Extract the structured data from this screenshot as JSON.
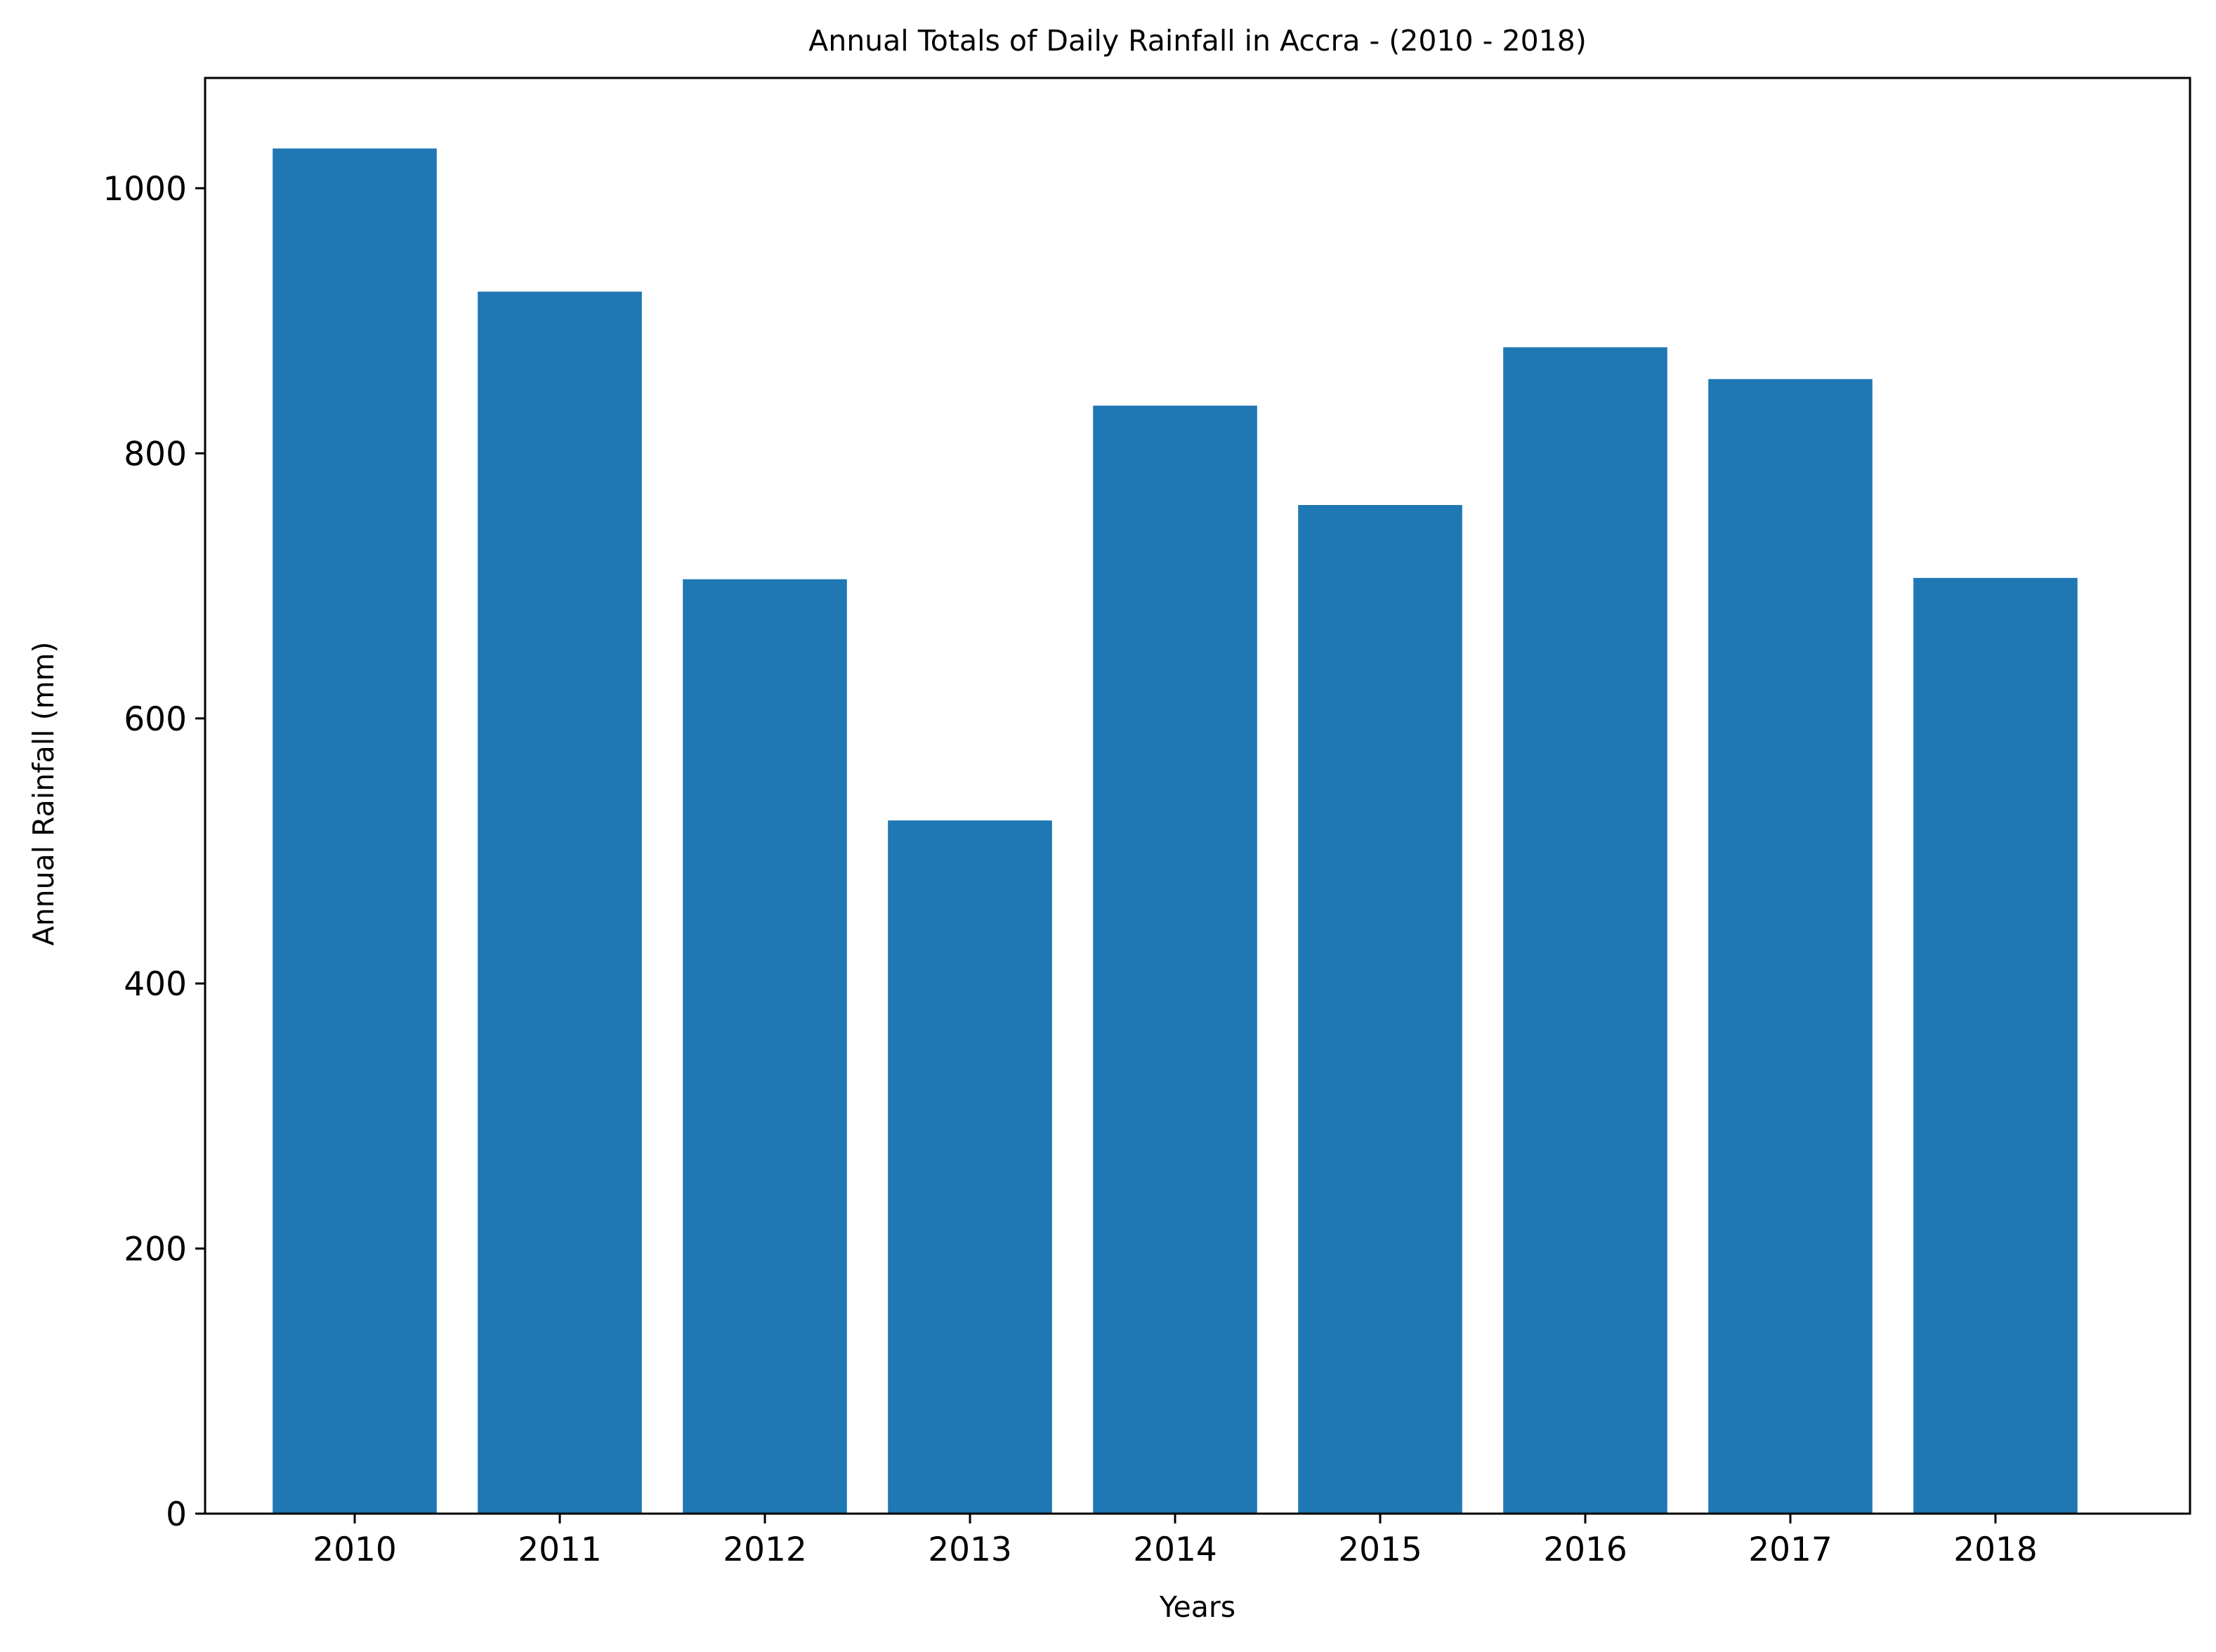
{
  "chart_data": {
    "type": "bar",
    "title": "Annual Totals of Daily Rainfall in Accra - (2010 - 2018)",
    "xlabel": "Years",
    "ylabel": "Annual Rainfall (mm)",
    "categories": [
      "2010",
      "2011",
      "2012",
      "2013",
      "2014",
      "2015",
      "2016",
      "2017",
      "2018"
    ],
    "values": [
      1030,
      922,
      705,
      523,
      836,
      761,
      880,
      856,
      706
    ],
    "ylim": [
      0,
      1000
    ],
    "yticks": [
      0,
      200,
      400,
      600,
      800,
      1000
    ],
    "ytick_labels": [
      "0",
      "200",
      "400",
      "600",
      "800",
      "1000"
    ],
    "grid": false,
    "bar_color": "#1f77b4"
  }
}
